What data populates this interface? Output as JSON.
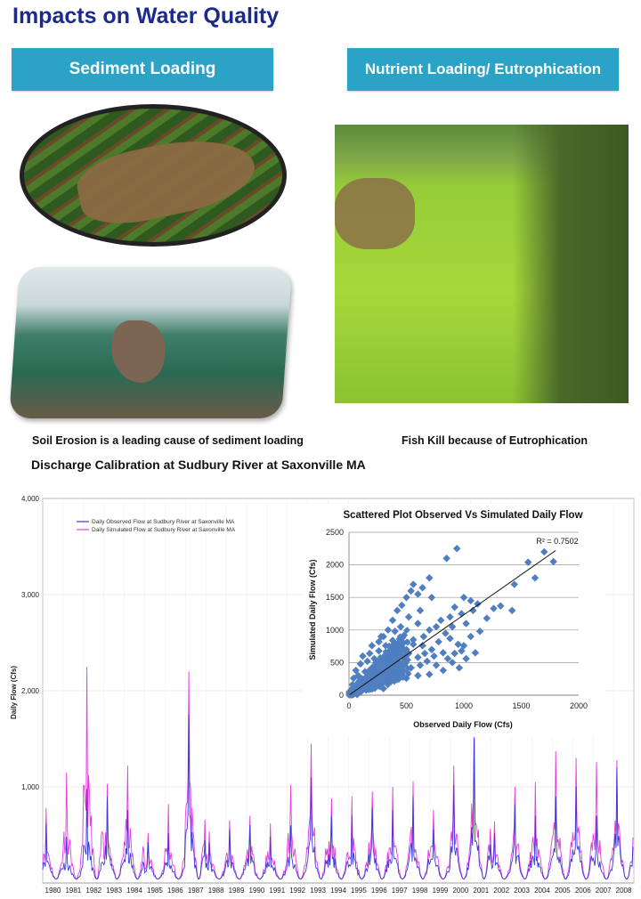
{
  "page": {
    "title": "Impacts on Water Quality",
    "banner_left": "Sediment Loading",
    "banner_right": "Nutrient Loading/ Eutrophication",
    "caption_left": "Soil Erosion is a leading cause of sediment loading",
    "caption_right": "Fish Kill because of Eutrophication",
    "chart_heading": "Discharge Calibration at Sudbury River at Saxonville MA"
  },
  "colors": {
    "banner": "#2ba3c7",
    "title": "#1c2a8c",
    "observed": "#3b3bd6",
    "simulated": "#e63ce0",
    "scatter": "#4f7fc0"
  },
  "chart_data": [
    {
      "type": "line",
      "ylabel": "Daily Flow (Cfs)",
      "ylim": [
        0,
        4000
      ],
      "y_ticks": [
        1000,
        2000,
        3000,
        4000
      ],
      "y_tick_labels": [
        "1,000",
        "2,000",
        "3,000",
        "4,000"
      ],
      "x_labels": [
        "1980",
        "1981",
        "1982",
        "1983",
        "1984",
        "1985",
        "1986",
        "1987",
        "1988",
        "1989",
        "1990",
        "1991",
        "1992",
        "1993",
        "1994",
        "1995",
        "1996",
        "1997",
        "1998",
        "1999",
        "2000",
        "2001",
        "2002",
        "2003",
        "2004",
        "2005",
        "2006",
        "2007",
        "2008"
      ],
      "grid": true,
      "legend_position": "top-left",
      "series": [
        {
          "name": "Daily Observed Flow at Sudbury River at Saxonville MA",
          "color": "#3b3bd6",
          "annual_peaks": [
            620,
            480,
            980,
            900,
            760,
            420,
            520,
            1750,
            420,
            560,
            600,
            480,
            600,
            1100,
            700,
            700,
            780,
            760,
            900,
            560,
            1020,
            1500,
            520,
            820,
            700,
            900,
            1000,
            700,
            1200
          ]
        },
        {
          "name": "Daily Simulated Flow at Sudbury River at Saxonville MA",
          "color": "#e63ce0",
          "annual_peaks": [
            780,
            1150,
            2250,
            1030,
            1220,
            520,
            820,
            2200,
            540,
            650,
            700,
            620,
            1020,
            1450,
            880,
            900,
            950,
            1000,
            1060,
            760,
            1220,
            1800,
            640,
            1000,
            1050,
            1370,
            1300,
            1260,
            1280
          ]
        }
      ]
    },
    {
      "type": "scatter",
      "title": "Scattered Plot Observed Vs Simulated Daily Flow",
      "xlabel": "Observed  Daily Flow (Cfs)",
      "ylabel": "Simulated Daily  Flow (Cfs)",
      "xlim": [
        0,
        2000
      ],
      "ylim": [
        0,
        2500
      ],
      "x_ticks": [
        0,
        500,
        1000,
        1500,
        2000
      ],
      "y_ticks": [
        0,
        500,
        1000,
        1500,
        2000,
        2500
      ],
      "annotation": "R² = 0.7502",
      "trendline": {
        "x": [
          0,
          1800
        ],
        "y": [
          0,
          2220
        ]
      },
      "points": [
        [
          940,
          2250
        ],
        [
          850,
          2100
        ],
        [
          1780,
          2050
        ],
        [
          1700,
          2200
        ],
        [
          1560,
          2040
        ],
        [
          1620,
          1800
        ],
        [
          1440,
          1700
        ],
        [
          1420,
          1300
        ],
        [
          1060,
          1450
        ],
        [
          1120,
          1400
        ],
        [
          1000,
          1500
        ],
        [
          1080,
          1300
        ],
        [
          980,
          1250
        ],
        [
          920,
          1350
        ],
        [
          880,
          1200
        ],
        [
          700,
          1800
        ],
        [
          640,
          1650
        ],
        [
          560,
          1700
        ],
        [
          600,
          1550
        ],
        [
          720,
          1500
        ],
        [
          540,
          1600
        ],
        [
          500,
          1500
        ],
        [
          460,
          1380
        ],
        [
          620,
          1300
        ],
        [
          800,
          1150
        ],
        [
          760,
          1050
        ],
        [
          900,
          1050
        ],
        [
          1020,
          1100
        ],
        [
          1260,
          1330
        ],
        [
          1320,
          1370
        ],
        [
          840,
          950
        ],
        [
          700,
          1000
        ],
        [
          600,
          1100
        ],
        [
          520,
          1200
        ],
        [
          420,
          1300
        ],
        [
          380,
          1150
        ],
        [
          450,
          1050
        ],
        [
          650,
          900
        ],
        [
          780,
          820
        ],
        [
          880,
          870
        ],
        [
          950,
          780
        ],
        [
          1000,
          760
        ],
        [
          1100,
          650
        ],
        [
          1020,
          560
        ],
        [
          960,
          420
        ],
        [
          900,
          500
        ],
        [
          820,
          650
        ],
        [
          720,
          700
        ],
        [
          640,
          760
        ],
        [
          560,
          850
        ],
        [
          480,
          920
        ],
        [
          400,
          980
        ],
        [
          340,
          1000
        ],
        [
          300,
          900
        ],
        [
          260,
          820
        ],
        [
          350,
          750
        ],
        [
          420,
          700
        ],
        [
          520,
          640
        ],
        [
          600,
          580
        ],
        [
          680,
          520
        ],
        [
          760,
          460
        ],
        [
          820,
          380
        ],
        [
          700,
          320
        ],
        [
          600,
          300
        ],
        [
          500,
          260
        ],
        [
          420,
          240
        ],
        [
          360,
          200
        ],
        [
          300,
          260
        ],
        [
          250,
          320
        ],
        [
          200,
          420
        ],
        [
          160,
          520
        ],
        [
          120,
          600
        ],
        [
          100,
          480
        ],
        [
          140,
          360
        ],
        [
          180,
          280
        ],
        [
          220,
          200
        ],
        [
          260,
          140
        ],
        [
          300,
          100
        ],
        [
          200,
          100
        ],
        [
          150,
          150
        ],
        [
          100,
          200
        ],
        [
          80,
          300
        ],
        [
          60,
          380
        ],
        [
          40,
          260
        ],
        [
          30,
          160
        ],
        [
          60,
          120
        ],
        [
          90,
          80
        ],
        [
          50,
          50
        ],
        [
          20,
          40
        ],
        [
          10,
          20
        ],
        [
          320,
          420
        ],
        [
          380,
          520
        ],
        [
          440,
          600
        ],
        [
          500,
          700
        ],
        [
          560,
          780
        ],
        [
          460,
          480
        ],
        [
          400,
          400
        ],
        [
          340,
          340
        ],
        [
          280,
          380
        ],
        [
          240,
          460
        ],
        [
          300,
          580
        ],
        [
          360,
          620
        ],
        [
          220,
          560
        ],
        [
          180,
          640
        ],
        [
          260,
          680
        ],
        [
          320,
          760
        ],
        [
          380,
          840
        ],
        [
          440,
          860
        ],
        [
          280,
          900
        ],
        [
          200,
          760
        ],
        [
          540,
          420
        ],
        [
          620,
          460
        ],
        [
          660,
          640
        ],
        [
          740,
          600
        ],
        [
          860,
          560
        ],
        [
          920,
          640
        ],
        [
          980,
          680
        ],
        [
          1060,
          900
        ],
        [
          1140,
          980
        ],
        [
          1200,
          1180
        ]
      ]
    }
  ]
}
